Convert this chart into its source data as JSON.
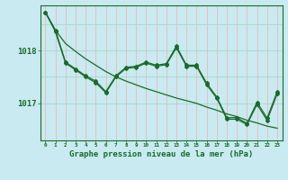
{
  "bg_color": "#c8eaf0",
  "grid_color_v": "#f0b8b8",
  "grid_color_h": "#a8d8c8",
  "line_color": "#1a6b2a",
  "title": "Graphe pression niveau de la mer (hPa)",
  "xlim": [
    -0.5,
    23.5
  ],
  "ylim": [
    1016.3,
    1018.85
  ],
  "yticks": [
    1017,
    1018
  ],
  "xticks": [
    0,
    1,
    2,
    3,
    4,
    5,
    6,
    7,
    8,
    9,
    10,
    11,
    12,
    13,
    14,
    15,
    16,
    17,
    18,
    19,
    20,
    21,
    22,
    23
  ],
  "line1_y": [
    1018.72,
    1018.38,
    1017.78,
    1017.65,
    1017.52,
    1017.42,
    1017.22,
    1017.52,
    1017.68,
    1017.7,
    1017.78,
    1017.72,
    1017.75,
    1018.08,
    1017.72,
    1017.72,
    1017.38,
    1017.12,
    1016.73,
    1016.73,
    1016.62,
    1017.02,
    1016.72,
    1017.22
  ],
  "line2_y": [
    1018.72,
    1018.35,
    1017.76,
    1017.63,
    1017.5,
    1017.39,
    1017.2,
    1017.5,
    1017.66,
    1017.68,
    1017.76,
    1017.7,
    1017.73,
    1018.05,
    1017.7,
    1017.7,
    1017.35,
    1017.1,
    1016.7,
    1016.7,
    1016.6,
    1016.98,
    1016.68,
    1017.18
  ],
  "line3_y": [
    1018.72,
    1018.38,
    1018.13,
    1017.98,
    1017.84,
    1017.72,
    1017.6,
    1017.5,
    1017.42,
    1017.35,
    1017.28,
    1017.22,
    1017.16,
    1017.1,
    1017.05,
    1017.0,
    1016.93,
    1016.87,
    1016.8,
    1016.75,
    1016.68,
    1016.63,
    1016.57,
    1016.53
  ]
}
